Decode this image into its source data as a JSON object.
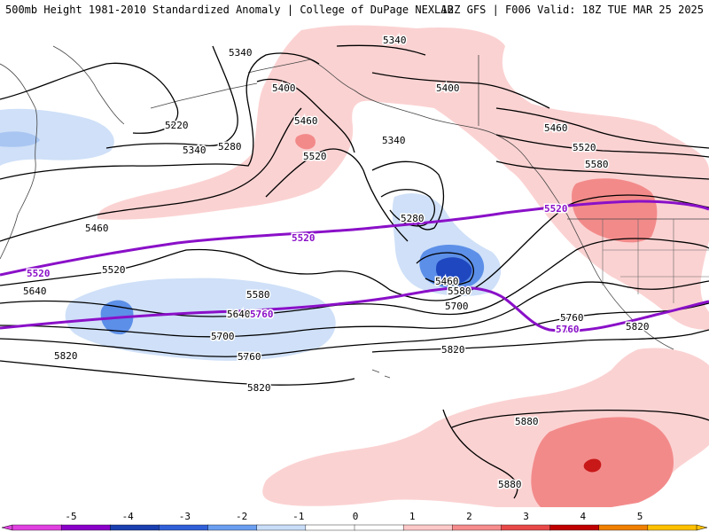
{
  "header": {
    "title_left": "500mb Height 1981-2010 Standardized Anomaly | College of DuPage NEXLAB",
    "title_right": "12Z GFS | F006 Valid: 18Z TUE MAR 25 2025"
  },
  "contour_labels": [
    {
      "id": "5340-a",
      "text": "5340"
    },
    {
      "id": "5340-b",
      "text": "5340"
    },
    {
      "id": "5400-a",
      "text": "5400"
    },
    {
      "id": "5400-b",
      "text": "5400"
    },
    {
      "id": "5460-a",
      "text": "5460"
    },
    {
      "id": "5460-b",
      "text": "5460"
    },
    {
      "id": "5460-c",
      "text": "5460"
    },
    {
      "id": "5460-d",
      "text": "5460"
    },
    {
      "id": "5220",
      "text": "5220"
    },
    {
      "id": "5280-a",
      "text": "5280"
    },
    {
      "id": "5280-b",
      "text": "5280"
    },
    {
      "id": "5340-c",
      "text": "5340"
    },
    {
      "id": "5340-d",
      "text": "5340"
    },
    {
      "id": "5520-a",
      "text": "5520"
    },
    {
      "id": "5520-b",
      "text": "5520"
    },
    {
      "id": "5520-c",
      "text": "5520"
    },
    {
      "id": "5580-a",
      "text": "5580"
    },
    {
      "id": "5580-b",
      "text": "5580"
    },
    {
      "id": "5580-c",
      "text": "5580"
    },
    {
      "id": "5640-a",
      "text": "5640"
    },
    {
      "id": "5640-b",
      "text": "5640"
    },
    {
      "id": "5700-a",
      "text": "5700"
    },
    {
      "id": "5700-b",
      "text": "5700"
    },
    {
      "id": "5760-a",
      "text": "5760"
    },
    {
      "id": "5760-b",
      "text": "5760"
    },
    {
      "id": "5820-a",
      "text": "5820"
    },
    {
      "id": "5820-b",
      "text": "5820"
    },
    {
      "id": "5820-c",
      "text": "5820"
    },
    {
      "id": "5820-d",
      "text": "5820"
    },
    {
      "id": "5880-a",
      "text": "5880"
    },
    {
      "id": "5880-b",
      "text": "5880"
    }
  ],
  "highlight_labels": [
    {
      "id": "h5520-a",
      "text": "5520"
    },
    {
      "id": "h5520-b",
      "text": "5520"
    },
    {
      "id": "h5520-c",
      "text": "5520"
    },
    {
      "id": "h5760-a",
      "text": "5760"
    },
    {
      "id": "h5760-b",
      "text": "5760"
    }
  ],
  "legend": {
    "ticks": [
      "-5",
      "-4",
      "-3",
      "-2",
      "-1",
      "0",
      "1",
      "2",
      "3",
      "4",
      "5"
    ],
    "colors": [
      "#e040e0",
      "#8a00c8",
      "#1a3fb0",
      "#3060d8",
      "#6a9ef0",
      "#c8ddf8",
      "#ffffff",
      "#ffffff",
      "#ffc8c8",
      "#f78c8c",
      "#e84848",
      "#c00000",
      "#f08000",
      "#ffc000"
    ]
  },
  "colors": {
    "warm_1": "#fbd2d2",
    "warm_2": "#f38a8a",
    "warm_3": "#d94040",
    "cool_1": "#cfe0f8",
    "cool_2": "#5c8fe8",
    "cool_3": "#1e47c0",
    "highlight_contour": "#8a10c8"
  }
}
